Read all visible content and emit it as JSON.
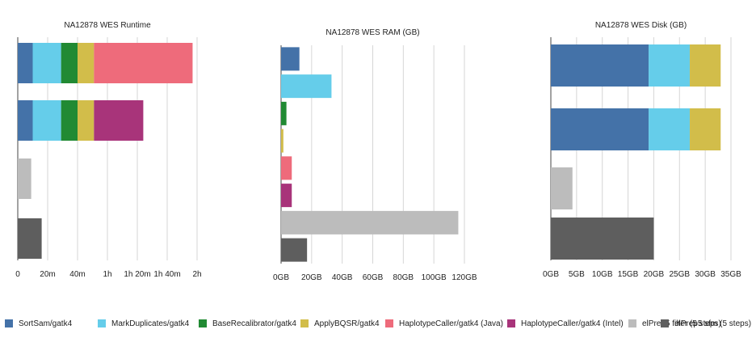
{
  "legend": [
    {
      "label": "SortSam/gatk4",
      "color": "#4472a8"
    },
    {
      "label": "MarkDuplicates/gatk4",
      "color": "#65cdea"
    },
    {
      "label": "BaseRecalibrator/gatk4",
      "color": "#218a33"
    },
    {
      "label": "ApplyBQSR/gatk4",
      "color": "#d2bd4a"
    },
    {
      "label": "HaplotypeCaller/gatk4 (Java)",
      "color": "#ee6b7b"
    },
    {
      "label": "HaplotypeCaller/gatk4 (Intel)",
      "color": "#a8347a"
    },
    {
      "label": "elPrep5 filter (5 steps)",
      "color": "#bcbcbc"
    },
    {
      "label": "elPrep5 sfm (5 steps)",
      "color": "#5e5e5e"
    }
  ],
  "chart_data": [
    {
      "type": "bar",
      "orientation": "horizontal",
      "stacked": true,
      "title": "NA12878 WES Runtime",
      "unit": "minutes",
      "xlim": [
        0,
        120
      ],
      "xticks": [
        0,
        20,
        40,
        60,
        80,
        100,
        120
      ],
      "xtick_labels": [
        "0",
        "20m",
        "40m",
        "1h",
        "1h 20m",
        "1h 40m",
        "2h"
      ],
      "grid": true,
      "rows": [
        {
          "segments": [
            {
              "series": "SortSam/gatk4",
              "value": 10
            },
            {
              "series": "MarkDuplicates/gatk4",
              "value": 19
            },
            {
              "series": "BaseRecalibrator/gatk4",
              "value": 11
            },
            {
              "series": "ApplyBQSR/gatk4",
              "value": 11
            },
            {
              "series": "HaplotypeCaller/gatk4 (Java)",
              "value": 66
            }
          ]
        },
        {
          "segments": [
            {
              "series": "SortSam/gatk4",
              "value": 10
            },
            {
              "series": "MarkDuplicates/gatk4",
              "value": 19
            },
            {
              "series": "BaseRecalibrator/gatk4",
              "value": 11
            },
            {
              "series": "ApplyBQSR/gatk4",
              "value": 11
            },
            {
              "series": "HaplotypeCaller/gatk4 (Intel)",
              "value": 33
            }
          ]
        },
        {
          "segments": [
            {
              "series": "elPrep5 filter (5 steps)",
              "value": 9
            }
          ]
        },
        {
          "segments": [
            {
              "series": "elPrep5 sfm (5 steps)",
              "value": 16
            }
          ]
        }
      ]
    },
    {
      "type": "bar",
      "orientation": "horizontal",
      "stacked": false,
      "title": "NA12878 WES RAM (GB)",
      "unit": "GB",
      "xlim": [
        0,
        120
      ],
      "xticks": [
        0,
        20,
        40,
        60,
        80,
        100,
        120
      ],
      "xtick_labels": [
        "0GB",
        "20GB",
        "40GB",
        "60GB",
        "80GB",
        "100GB",
        "120GB"
      ],
      "grid": true,
      "bars": [
        {
          "series": "SortSam/gatk4",
          "value": 12
        },
        {
          "series": "MarkDuplicates/gatk4",
          "value": 33
        },
        {
          "series": "BaseRecalibrator/gatk4",
          "value": 3.5
        },
        {
          "series": "ApplyBQSR/gatk4",
          "value": 1.5
        },
        {
          "series": "HaplotypeCaller/gatk4 (Java)",
          "value": 7
        },
        {
          "series": "HaplotypeCaller/gatk4 (Intel)",
          "value": 7
        },
        {
          "series": "elPrep5 filter (5 steps)",
          "value": 116
        },
        {
          "series": "elPrep5 sfm (5 steps)",
          "value": 17
        }
      ]
    },
    {
      "type": "bar",
      "orientation": "horizontal",
      "stacked": true,
      "title": "NA12878 WES Disk (GB)",
      "unit": "GB",
      "xlim": [
        0,
        35
      ],
      "xticks": [
        0,
        5,
        10,
        15,
        20,
        25,
        30,
        35
      ],
      "xtick_labels": [
        "0GB",
        "5GB",
        "10GB",
        "15GB",
        "20GB",
        "25GB",
        "30GB",
        "35GB"
      ],
      "grid": true,
      "rows": [
        {
          "segments": [
            {
              "series": "SortSam/gatk4",
              "value": 19
            },
            {
              "series": "MarkDuplicates/gatk4",
              "value": 8
            },
            {
              "series": "ApplyBQSR/gatk4",
              "value": 6
            }
          ]
        },
        {
          "segments": [
            {
              "series": "SortSam/gatk4",
              "value": 19
            },
            {
              "series": "MarkDuplicates/gatk4",
              "value": 8
            },
            {
              "series": "ApplyBQSR/gatk4",
              "value": 6
            }
          ]
        },
        {
          "segments": [
            {
              "series": "elPrep5 filter (5 steps)",
              "value": 4.2
            }
          ]
        },
        {
          "segments": [
            {
              "series": "elPrep5 sfm (5 steps)",
              "value": 20
            }
          ]
        }
      ]
    }
  ]
}
